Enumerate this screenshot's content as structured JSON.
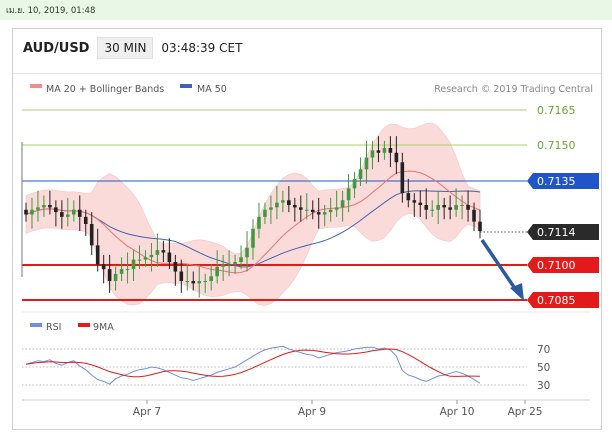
{
  "top_bar": {
    "datetime": "เม.ย. 10, 2019, 01:48"
  },
  "header": {
    "pair": "AUD/USD",
    "timeframe": "30 MIN",
    "time": "03:48:39 CET"
  },
  "legend": {
    "ma20_label": "MA 20 + Bollinger Bands",
    "ma50_label": "MA 50",
    "copyright": "Research © 2019 Trading Central"
  },
  "colors": {
    "ma20": "#e87373",
    "bb_fill": "#fbd6d6",
    "ma50": "#3e63b0",
    "up_candle": "#3f9a3f",
    "down_candle": "#222222",
    "green_level": "#8fc04a",
    "blue_level": "#1f55c8",
    "red_level": "#e21a1a",
    "rsi": "#6f8fe0",
    "rsi_ma": "#e21a1a",
    "arrow": "#2c5aa0"
  },
  "price_levels": [
    {
      "value": "0.7165",
      "kind": "green"
    },
    {
      "value": "0.7150",
      "kind": "green"
    },
    {
      "value": "0.7135",
      "kind": "blue"
    },
    {
      "value": "0.7114",
      "kind": "current"
    },
    {
      "value": "0.7100",
      "kind": "red"
    },
    {
      "value": "0.7085",
      "kind": "red"
    }
  ],
  "rsi_panel": {
    "rsi_label": "RSI",
    "ma_label": "9MA",
    "levels": [
      "70",
      "50",
      "30"
    ]
  },
  "x_axis": {
    "labels": [
      "Apr 7",
      "Apr 9",
      "Apr 10",
      "Apr 25"
    ]
  },
  "chart_data": {
    "type": "candlestick",
    "instrument": "AUD/USD",
    "timeframe": "30 MIN",
    "y_axis_ticks": [
      0.7165,
      0.715,
      0.7135,
      0.7114,
      0.71,
      0.7085
    ],
    "close_series": [
      0.7121,
      0.7123,
      0.7124,
      0.7125,
      0.7124,
      0.7122,
      0.712,
      0.7121,
      0.7123,
      0.712,
      0.7117,
      0.7108,
      0.71,
      0.7098,
      0.7093,
      0.7096,
      0.7098,
      0.7098,
      0.7102,
      0.7102,
      0.7103,
      0.7104,
      0.7106,
      0.7105,
      0.7101,
      0.7097,
      0.7093,
      0.7093,
      0.7092,
      0.7093,
      0.7093,
      0.7095,
      0.7099,
      0.71,
      0.71,
      0.7101,
      0.7103,
      0.7107,
      0.7115,
      0.712,
      0.7123,
      0.7124,
      0.7126,
      0.7127,
      0.7125,
      0.7124,
      0.7123,
      0.7123,
      0.7122,
      0.7121,
      0.7122,
      0.7123,
      0.7124,
      0.7127,
      0.7132,
      0.7136,
      0.714,
      0.7145,
      0.7148,
      0.7147,
      0.7149,
      0.7147,
      0.7143,
      0.713,
      0.7127,
      0.7126,
      0.7125,
      0.7123,
      0.7123,
      0.7125,
      0.7124,
      0.7123,
      0.7125,
      0.7125,
      0.7123,
      0.7118,
      0.7114
    ],
    "rsi_series": [
      53,
      55,
      57,
      56,
      58,
      54,
      52,
      55,
      57,
      51,
      47,
      41,
      36,
      34,
      31,
      37,
      40,
      42,
      45,
      47,
      48,
      50,
      49,
      47,
      44,
      41,
      38,
      37,
      35,
      37,
      39,
      41,
      44,
      46,
      48,
      50,
      54,
      58,
      62,
      66,
      69,
      71,
      72,
      73,
      70,
      68,
      66,
      64,
      63,
      60,
      62,
      64,
      66,
      67,
      68,
      70,
      71,
      72,
      72,
      70,
      71,
      69,
      62,
      46,
      41,
      39,
      36,
      34,
      37,
      40,
      41,
      43,
      45,
      43,
      40,
      36,
      32
    ]
  }
}
